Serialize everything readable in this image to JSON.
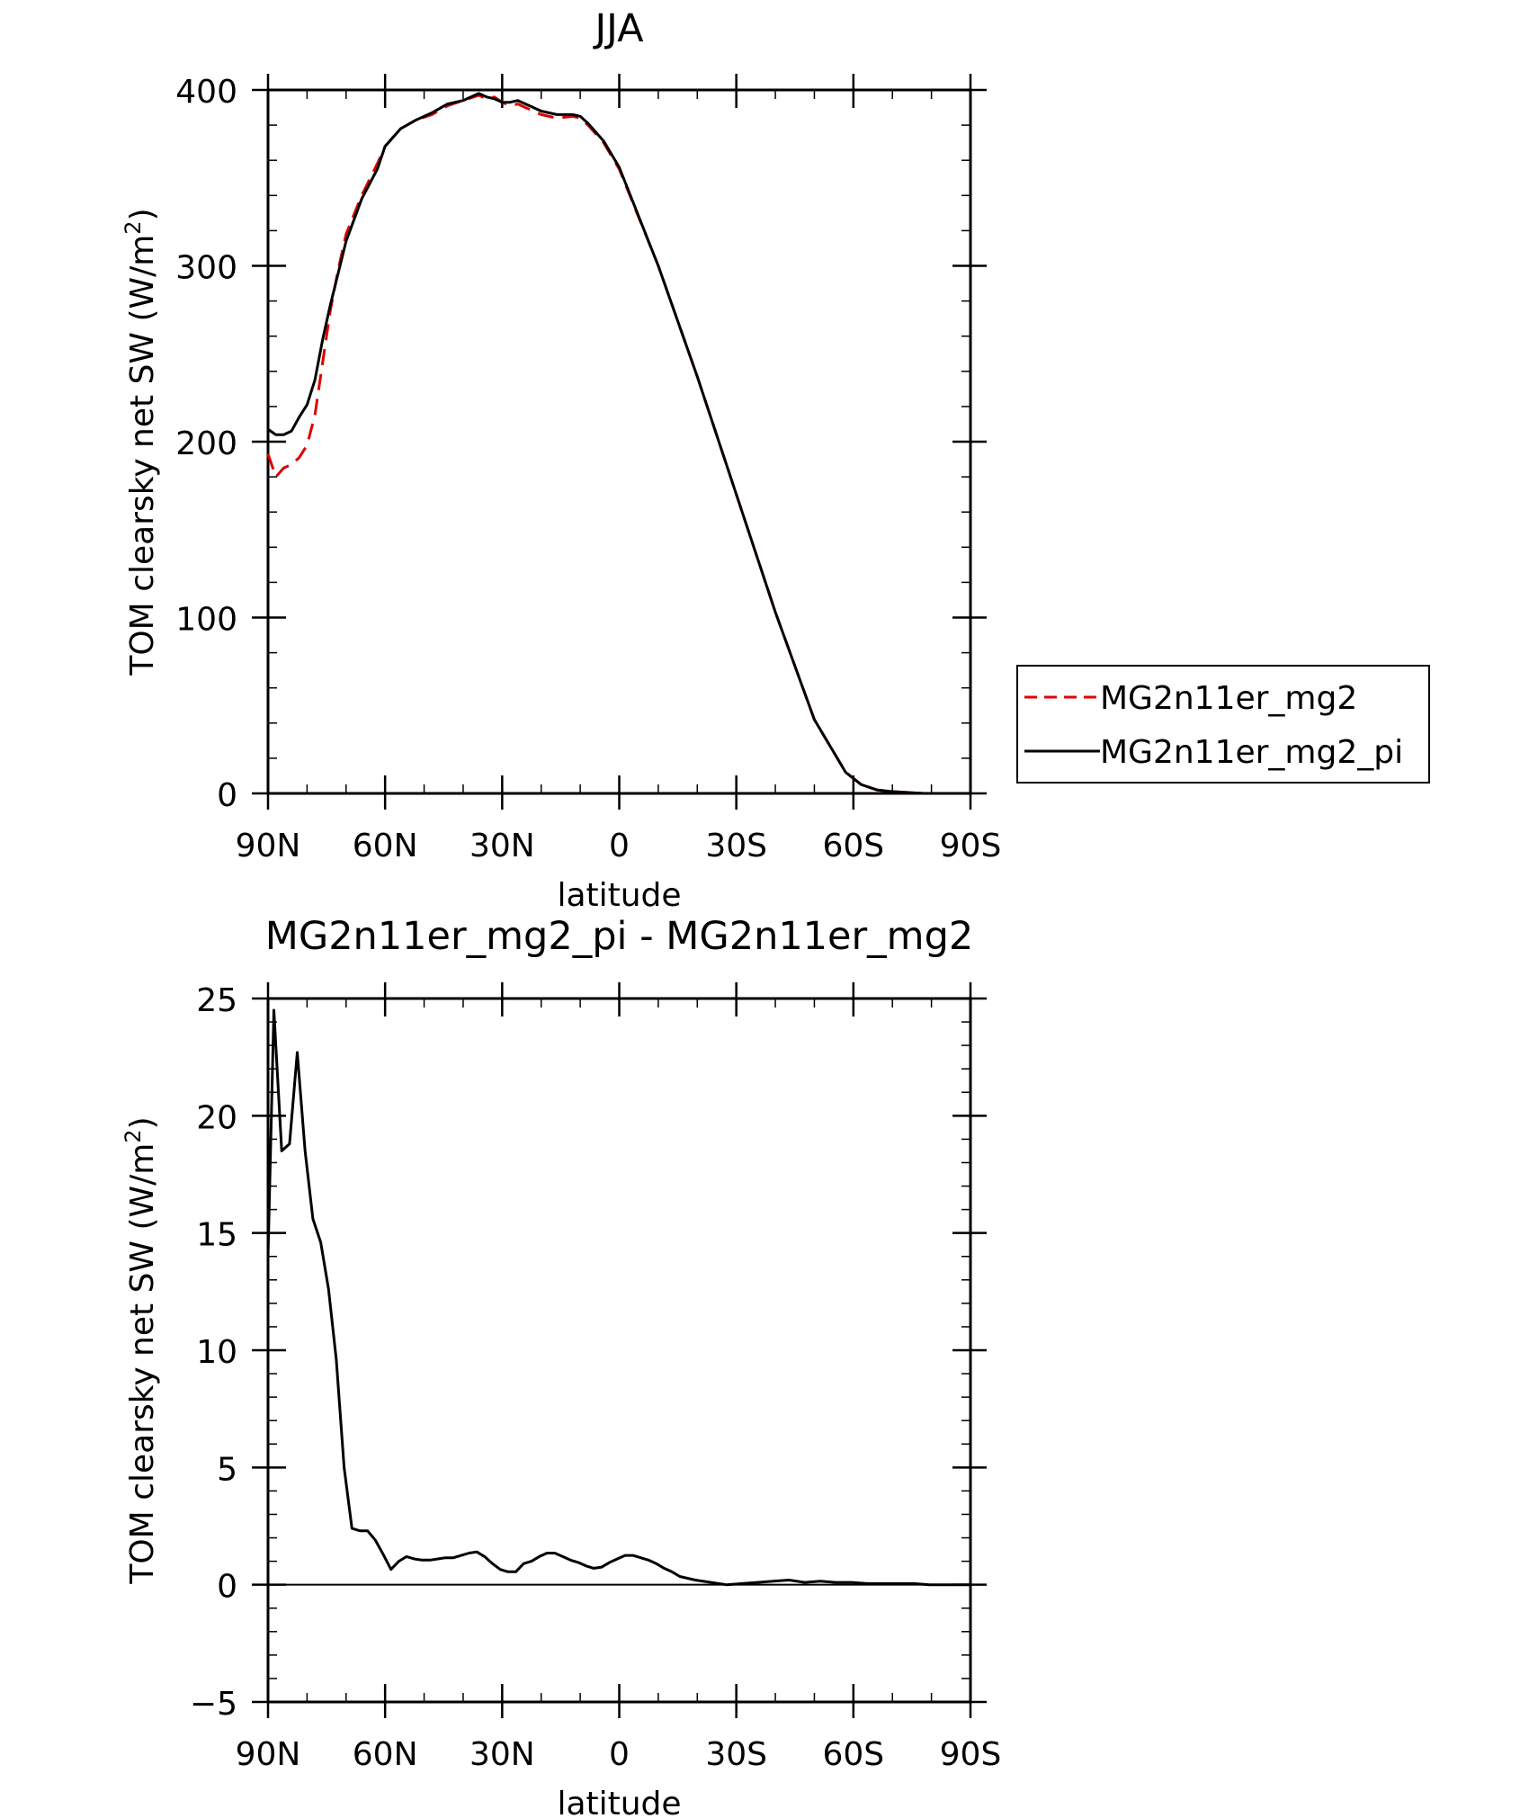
{
  "chart_data": [
    {
      "type": "line",
      "title": "JJA",
      "xlabel": "latitude",
      "ylabel_main": "TOM clearsky net SW (W/m",
      "ylabel_sup": "2",
      "ylabel_tail": ")",
      "xlim": [
        90,
        -90
      ],
      "ylim": [
        0,
        400
      ],
      "x_ticks": [
        90,
        60,
        30,
        0,
        -30,
        -60,
        -90
      ],
      "x_tick_labels": [
        "90N",
        "60N",
        "30N",
        "0",
        "30S",
        "60S",
        "90S"
      ],
      "y_ticks": [
        0,
        100,
        200,
        300,
        400
      ],
      "y_tick_labels": [
        "0",
        "100",
        "200",
        "300",
        "400"
      ],
      "legend_position": "right",
      "series": [
        {
          "name": "MG2n11er_mg2",
          "color": "#e00000",
          "dash": "dashed",
          "x": [
            90,
            88,
            86,
            84,
            82,
            80,
            78,
            76,
            74,
            72,
            70,
            66,
            62,
            60,
            56,
            52,
            48,
            44,
            40,
            36,
            34,
            32,
            30,
            28,
            26,
            24,
            20,
            16,
            12,
            10,
            8,
            4,
            0,
            -10,
            -20,
            -30,
            -40,
            -50,
            -58,
            -62,
            -66,
            -70,
            -74,
            -78,
            -82,
            -86,
            -90
          ],
          "y": [
            193,
            180,
            185,
            187,
            191,
            198,
            215,
            245,
            275,
            298,
            318,
            340,
            358,
            368,
            378,
            383,
            386,
            391,
            394,
            397,
            395,
            396,
            393,
            391,
            392,
            390,
            386,
            384,
            385,
            384,
            380,
            370,
            355,
            300,
            237,
            170,
            103,
            42,
            12,
            5,
            2,
            1,
            0.5,
            0,
            0,
            0,
            0
          ]
        },
        {
          "name": "MG2n11er_mg2_pi",
          "color": "#000000",
          "dash": "solid",
          "x": [
            90,
            88,
            86,
            84,
            82,
            80,
            78,
            76,
            74,
            72,
            70,
            66,
            62,
            60,
            56,
            52,
            48,
            44,
            40,
            36,
            34,
            32,
            30,
            28,
            26,
            24,
            20,
            16,
            12,
            10,
            8,
            4,
            0,
            -10,
            -20,
            -30,
            -40,
            -50,
            -58,
            -62,
            -66,
            -70,
            -74,
            -78,
            -82,
            -86,
            -90
          ],
          "y": [
            207,
            204,
            204,
            206,
            214,
            221,
            235,
            258,
            278,
            296,
            314,
            338,
            355,
            368,
            378,
            383,
            387,
            392,
            394,
            398,
            396,
            395,
            393,
            393,
            394,
            392,
            388,
            386,
            386,
            385,
            381,
            371,
            356,
            300,
            237,
            170,
            103,
            42,
            12,
            5,
            2,
            1,
            0.5,
            0,
            0,
            0,
            0
          ]
        }
      ]
    },
    {
      "type": "line",
      "title": "MG2n11er_mg2_pi - MG2n11er_mg2",
      "xlabel": "latitude",
      "ylabel_main": "TOM clearsky net SW (W/m",
      "ylabel_sup": "2",
      "ylabel_tail": ")",
      "xlim": [
        90,
        -90
      ],
      "ylim": [
        -5,
        25
      ],
      "x_ticks": [
        90,
        60,
        30,
        0,
        -30,
        -60,
        -90
      ],
      "x_tick_labels": [
        "90N",
        "60N",
        "30N",
        "0",
        "30S",
        "60S",
        "90S"
      ],
      "y_ticks": [
        -5,
        0,
        5,
        10,
        15,
        20,
        25
      ],
      "y_tick_labels": [
        "−5",
        "0",
        "5",
        "10",
        "15",
        "20",
        "25"
      ],
      "series": [
        {
          "color": "#000000",
          "dash": "solid",
          "x": [
            90,
            88.5,
            86.5,
            84.5,
            82.5,
            80.5,
            78.5,
            76.5,
            74.5,
            72.5,
            70.5,
            68.5,
            66.5,
            64.5,
            62.5,
            60.5,
            58.5,
            56.5,
            54.5,
            52.5,
            50.5,
            48.5,
            46.5,
            44.5,
            42.5,
            40.5,
            38.5,
            36.5,
            34.5,
            32.5,
            30.5,
            28.5,
            26.5,
            24.5,
            22.5,
            20.5,
            18.5,
            16.5,
            14.5,
            12.5,
            10.5,
            8.5,
            6.5,
            4.5,
            2.5,
            0.5,
            -1.5,
            -3.5,
            -5.5,
            -7.5,
            -9.5,
            -11.5,
            -13.5,
            -15.5,
            -19.5,
            -23.5,
            -27.5,
            -31.5,
            -35.5,
            -39.5,
            -43.5,
            -47.5,
            -51.5,
            -55.5,
            -59.5,
            -63.5,
            -67.5,
            -71.5,
            -75.5,
            -79.5,
            -83.5,
            -87.5,
            -90
          ],
          "y": [
            14,
            24.5,
            18.5,
            18.8,
            22.7,
            18.5,
            15.6,
            14.6,
            12.6,
            9.6,
            5.0,
            2.4,
            2.3,
            2.3,
            1.9,
            1.3,
            0.65,
            1.0,
            1.2,
            1.1,
            1.05,
            1.05,
            1.1,
            1.15,
            1.15,
            1.25,
            1.35,
            1.4,
            1.2,
            0.9,
            0.65,
            0.55,
            0.55,
            0.9,
            1.0,
            1.2,
            1.35,
            1.35,
            1.2,
            1.05,
            0.95,
            0.8,
            0.7,
            0.75,
            0.95,
            1.1,
            1.25,
            1.25,
            1.15,
            1.05,
            0.9,
            0.7,
            0.55,
            0.35,
            0.2,
            0.1,
            0.0,
            0.05,
            0.1,
            0.15,
            0.2,
            0.1,
            0.15,
            0.1,
            0.1,
            0.05,
            0.05,
            0.05,
            0.05,
            0.0,
            0.0,
            0.0,
            0.0
          ]
        }
      ]
    }
  ]
}
